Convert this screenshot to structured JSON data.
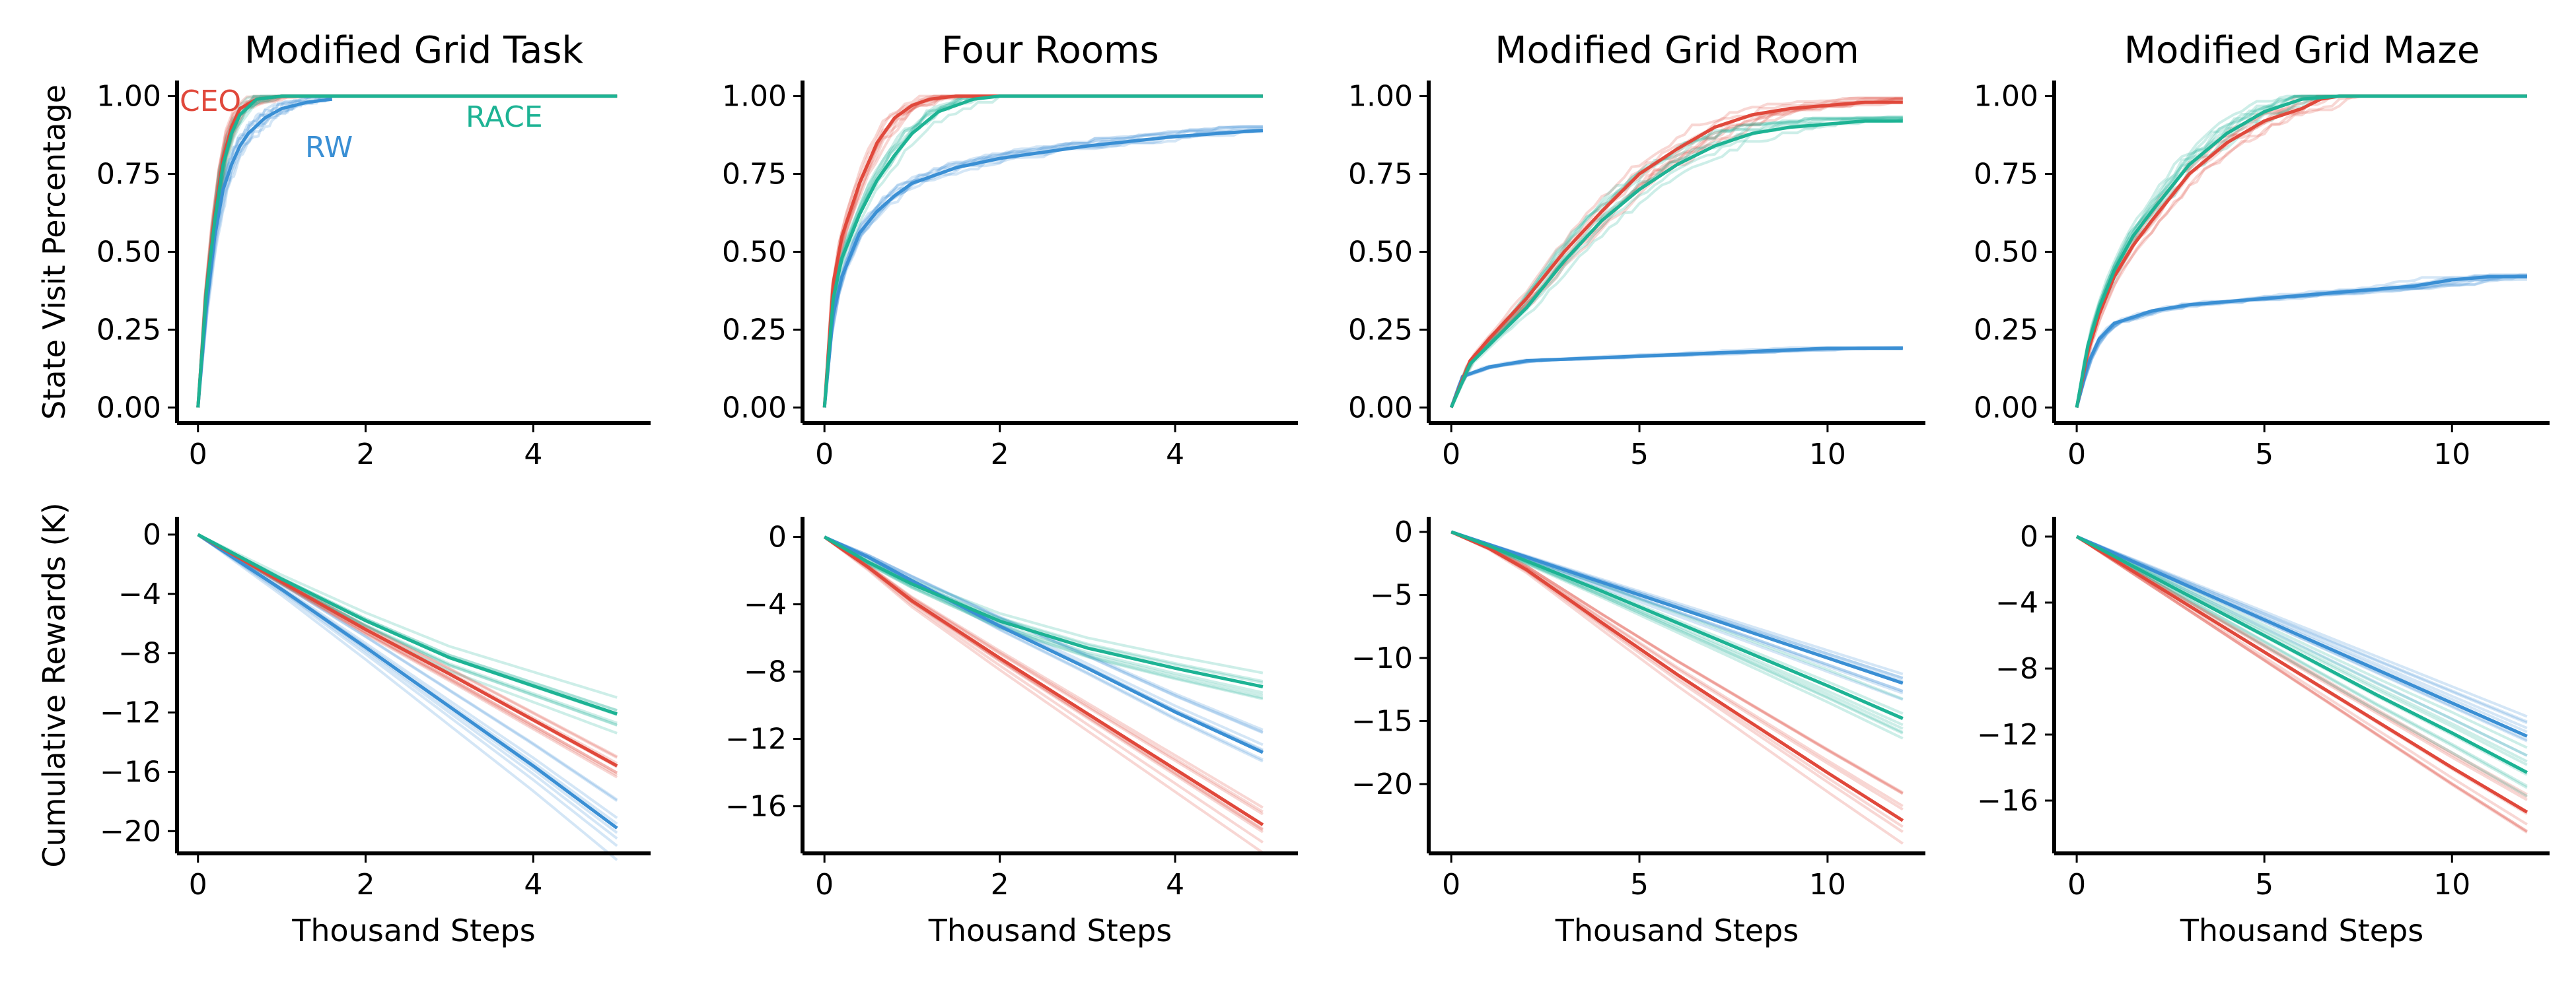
{
  "colors": {
    "CEO": "#e0483b",
    "RW": "#3a8fd4",
    "RACE": "#1db394"
  },
  "row_labels": [
    "State Visit Percentage",
    "Cumulative Rewards (K)"
  ],
  "xlabel": "Thousand Steps",
  "legend": {
    "CEO": "CEO",
    "RW": "RW",
    "RACE": "RACE"
  },
  "chart_data": [
    {
      "type": "line",
      "title": "Modified Grid Task",
      "xlim": [
        -0.25,
        5.4
      ],
      "ylim": [
        -0.05,
        1.05
      ],
      "xticks": [
        0,
        2,
        4
      ],
      "xtick_labels": [
        "0",
        "2",
        "4"
      ],
      "yticks": [
        0,
        0.25,
        0.5,
        0.75,
        1.0
      ],
      "ytick_labels": [
        "0.00",
        "0.25",
        "0.50",
        "0.75",
        "1.00"
      ],
      "series": [
        {
          "name": "CEO",
          "x": [
            0,
            0.1,
            0.2,
            0.3,
            0.4,
            0.5,
            0.7,
            1.0,
            5.0
          ],
          "y": [
            0,
            0.38,
            0.62,
            0.8,
            0.9,
            0.96,
            0.99,
            1.0,
            1.0
          ]
        },
        {
          "name": "RW",
          "x": [
            0,
            0.1,
            0.2,
            0.3,
            0.4,
            0.5,
            0.6,
            0.8,
            1.0,
            1.3,
            1.6
          ],
          "y": [
            0,
            0.32,
            0.55,
            0.7,
            0.78,
            0.84,
            0.88,
            0.93,
            0.96,
            0.98,
            0.99
          ]
        },
        {
          "name": "RACE",
          "x": [
            0,
            0.1,
            0.2,
            0.3,
            0.4,
            0.5,
            0.7,
            1.0,
            5.0
          ],
          "y": [
            0,
            0.37,
            0.6,
            0.78,
            0.88,
            0.94,
            0.99,
            1.0,
            1.0
          ]
        }
      ]
    },
    {
      "type": "line",
      "title": "Four Rooms",
      "xlim": [
        -0.25,
        5.4
      ],
      "ylim": [
        -0.05,
        1.05
      ],
      "xticks": [
        0,
        2,
        4
      ],
      "xtick_labels": [
        "0",
        "2",
        "4"
      ],
      "yticks": [
        0,
        0.25,
        0.5,
        0.75,
        1.0
      ],
      "ytick_labels": [
        "0.00",
        "0.25",
        "0.50",
        "0.75",
        "1.00"
      ],
      "series": [
        {
          "name": "CEO",
          "x": [
            0,
            0.1,
            0.2,
            0.4,
            0.6,
            0.8,
            1.0,
            1.2,
            1.5,
            5.0
          ],
          "y": [
            0,
            0.4,
            0.55,
            0.72,
            0.85,
            0.93,
            0.97,
            0.99,
            1.0,
            1.0
          ]
        },
        {
          "name": "RW",
          "x": [
            0,
            0.1,
            0.2,
            0.4,
            0.6,
            0.8,
            1.0,
            1.5,
            2.0,
            3.0,
            4.0,
            5.0
          ],
          "y": [
            0,
            0.3,
            0.42,
            0.56,
            0.63,
            0.68,
            0.72,
            0.77,
            0.8,
            0.84,
            0.87,
            0.89
          ]
        },
        {
          "name": "RACE",
          "x": [
            0,
            0.1,
            0.2,
            0.4,
            0.6,
            0.8,
            1.0,
            1.3,
            1.7,
            2.0,
            5.0
          ],
          "y": [
            0,
            0.35,
            0.48,
            0.62,
            0.73,
            0.81,
            0.88,
            0.95,
            0.99,
            1.0,
            1.0
          ]
        }
      ]
    },
    {
      "type": "line",
      "title": "Modified Grid Room",
      "xlim": [
        -0.6,
        12.6
      ],
      "ylim": [
        -0.05,
        1.05
      ],
      "xticks": [
        0,
        5,
        10
      ],
      "xtick_labels": [
        "0",
        "5",
        "10"
      ],
      "yticks": [
        0,
        0.25,
        0.5,
        0.75,
        1.0
      ],
      "ytick_labels": [
        "0.00",
        "0.25",
        "0.50",
        "0.75",
        "1.00"
      ],
      "series": [
        {
          "name": "CEO",
          "x": [
            0,
            0.5,
            1,
            2,
            3,
            4,
            5,
            6,
            7,
            8,
            9,
            10,
            11,
            12
          ],
          "y": [
            0,
            0.15,
            0.22,
            0.35,
            0.5,
            0.63,
            0.75,
            0.83,
            0.9,
            0.94,
            0.96,
            0.97,
            0.98,
            0.98
          ]
        },
        {
          "name": "RW",
          "x": [
            0,
            0.3,
            1,
            2,
            4,
            6,
            8,
            10,
            12
          ],
          "y": [
            0,
            0.1,
            0.13,
            0.15,
            0.16,
            0.17,
            0.18,
            0.19,
            0.19
          ]
        },
        {
          "name": "RACE",
          "x": [
            0,
            0.5,
            1,
            2,
            3,
            4,
            5,
            6,
            7,
            8,
            9,
            10,
            11,
            12
          ],
          "y": [
            0,
            0.14,
            0.2,
            0.32,
            0.47,
            0.6,
            0.7,
            0.78,
            0.84,
            0.88,
            0.9,
            0.91,
            0.92,
            0.92
          ]
        }
      ]
    },
    {
      "type": "line",
      "title": "Modified Grid Maze",
      "xlim": [
        -0.6,
        12.6
      ],
      "ylim": [
        -0.05,
        1.05
      ],
      "xticks": [
        0,
        5,
        10
      ],
      "xtick_labels": [
        "0",
        "5",
        "10"
      ],
      "yticks": [
        0,
        0.25,
        0.5,
        0.75,
        1.0
      ],
      "ytick_labels": [
        "0.00",
        "0.25",
        "0.50",
        "0.75",
        "1.00"
      ],
      "series": [
        {
          "name": "CEO",
          "x": [
            0,
            0.3,
            0.6,
            1,
            1.5,
            2,
            3,
            4,
            5,
            6,
            6.5,
            7,
            12
          ],
          "y": [
            0,
            0.18,
            0.3,
            0.42,
            0.52,
            0.6,
            0.75,
            0.85,
            0.92,
            0.96,
            0.99,
            1.0,
            1.0
          ]
        },
        {
          "name": "RW",
          "x": [
            0,
            0.3,
            0.6,
            1,
            2,
            3,
            4,
            5,
            6,
            7,
            8,
            9,
            10,
            11,
            12
          ],
          "y": [
            0,
            0.14,
            0.22,
            0.27,
            0.31,
            0.33,
            0.34,
            0.35,
            0.36,
            0.37,
            0.38,
            0.39,
            0.41,
            0.42,
            0.42
          ]
        },
        {
          "name": "RACE",
          "x": [
            0,
            0.3,
            0.6,
            1,
            1.5,
            2,
            3,
            4,
            5,
            6,
            7,
            12
          ],
          "y": [
            0,
            0.2,
            0.32,
            0.44,
            0.55,
            0.63,
            0.78,
            0.88,
            0.95,
            0.99,
            1.0,
            1.0
          ]
        }
      ]
    },
    {
      "type": "line",
      "title": "",
      "xlim": [
        -0.25,
        5.4
      ],
      "ylim": [
        -21.5,
        1.2
      ],
      "xticks": [
        0,
        2,
        4
      ],
      "xtick_labels": [
        "0",
        "2",
        "4"
      ],
      "yticks": [
        0,
        -4,
        -8,
        -12,
        -16,
        -20
      ],
      "ytick_labels": [
        "0",
        "−4",
        "−8",
        "−12",
        "−16",
        "−20"
      ],
      "series": [
        {
          "name": "CEO",
          "x": [
            0,
            1,
            2,
            3,
            4,
            5
          ],
          "y": [
            0,
            -3.2,
            -6.4,
            -9.4,
            -12.5,
            -15.6
          ]
        },
        {
          "name": "RW",
          "x": [
            0,
            1,
            2,
            3,
            4,
            5
          ],
          "y": [
            0,
            -3.7,
            -7.6,
            -11.6,
            -15.6,
            -19.8
          ]
        },
        {
          "name": "RACE",
          "x": [
            0,
            1,
            2,
            3,
            4,
            5
          ],
          "y": [
            0,
            -3.0,
            -5.8,
            -8.3,
            -10.2,
            -12.1
          ]
        }
      ]
    },
    {
      "type": "line",
      "title": "",
      "xlim": [
        -0.25,
        5.4
      ],
      "ylim": [
        -18.8,
        1.2
      ],
      "xticks": [
        0,
        2,
        4
      ],
      "xtick_labels": [
        "0",
        "2",
        "4"
      ],
      "yticks": [
        0,
        -4,
        -8,
        -12,
        -16
      ],
      "ytick_labels": [
        "0",
        "−4",
        "−8",
        "−12",
        "−16"
      ],
      "series": [
        {
          "name": "CEO",
          "x": [
            0,
            0.5,
            1,
            2,
            3,
            4,
            5
          ],
          "y": [
            0,
            -1.8,
            -3.8,
            -7.2,
            -10.5,
            -13.8,
            -17.1
          ]
        },
        {
          "name": "RW",
          "x": [
            0,
            0.5,
            1,
            2,
            3,
            4,
            5
          ],
          "y": [
            0,
            -1.2,
            -2.6,
            -5.3,
            -7.8,
            -10.4,
            -12.8
          ]
        },
        {
          "name": "RACE",
          "x": [
            0,
            0.5,
            1,
            2,
            3,
            4,
            5
          ],
          "y": [
            0,
            -1.5,
            -2.8,
            -5.0,
            -6.6,
            -7.8,
            -8.9
          ]
        }
      ]
    },
    {
      "type": "line",
      "title": "",
      "xlim": [
        -0.6,
        12.6
      ],
      "ylim": [
        -25.5,
        1.2
      ],
      "xticks": [
        0,
        5,
        10
      ],
      "xtick_labels": [
        "0",
        "5",
        "10"
      ],
      "yticks": [
        0,
        -5,
        -10,
        -15,
        -20
      ],
      "ytick_labels": [
        "0",
        "−5",
        "−10",
        "−15",
        "−20"
      ],
      "series": [
        {
          "name": "CEO",
          "x": [
            0,
            1,
            2,
            4,
            6,
            8,
            10,
            12
          ],
          "y": [
            0,
            -1.3,
            -3.0,
            -7.2,
            -11.3,
            -15.2,
            -19.1,
            -22.9
          ]
        },
        {
          "name": "RW",
          "x": [
            0,
            12
          ],
          "y": [
            0,
            -12.0
          ]
        },
        {
          "name": "RACE",
          "x": [
            0,
            1,
            2,
            4,
            6,
            8,
            10,
            12
          ],
          "y": [
            0,
            -1.1,
            -2.3,
            -4.7,
            -7.2,
            -9.7,
            -12.2,
            -14.8
          ]
        }
      ]
    },
    {
      "type": "line",
      "title": "",
      "xlim": [
        -0.6,
        12.6
      ],
      "ylim": [
        -19.2,
        1.2
      ],
      "xticks": [
        0,
        5,
        10
      ],
      "xtick_labels": [
        "0",
        "5",
        "10"
      ],
      "yticks": [
        0,
        -4,
        -8,
        -12,
        -16
      ],
      "ytick_labels": [
        "0",
        "−4",
        "−8",
        "−12",
        "−16"
      ],
      "series": [
        {
          "name": "CEO",
          "x": [
            0,
            2,
            4,
            6,
            8,
            10,
            12
          ],
          "y": [
            0,
            -2.8,
            -5.6,
            -8.4,
            -11.2,
            -14.0,
            -16.7
          ]
        },
        {
          "name": "RW",
          "x": [
            0,
            12
          ],
          "y": [
            0,
            -12.1
          ]
        },
        {
          "name": "RACE",
          "x": [
            0,
            2,
            4,
            6,
            8,
            10,
            12
          ],
          "y": [
            0,
            -2.4,
            -4.8,
            -7.2,
            -9.6,
            -11.9,
            -14.3
          ]
        }
      ]
    }
  ]
}
